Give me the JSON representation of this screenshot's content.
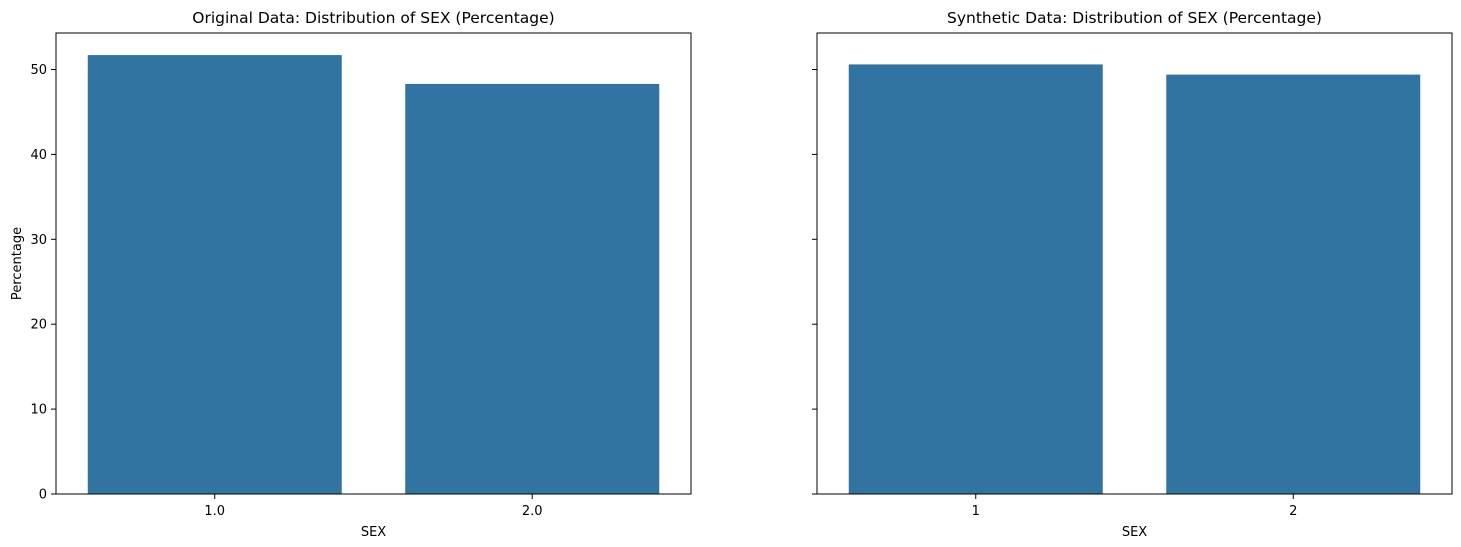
{
  "bar_color": "#3274a1",
  "chart_data": [
    {
      "type": "bar",
      "title": "Original Data: Distribution of SEX (Percentage)",
      "xlabel": "SEX",
      "ylabel": "Percentage",
      "categories": [
        "1.0",
        "2.0"
      ],
      "values": [
        51.7,
        48.3
      ],
      "ylim": [
        0,
        54.3
      ],
      "yticks": [
        0,
        10,
        20,
        30,
        40,
        50
      ],
      "grid": false,
      "legend": "none"
    },
    {
      "type": "bar",
      "title": "Synthetic Data: Distribution of SEX (Percentage)",
      "xlabel": "SEX",
      "ylabel": "",
      "categories": [
        "1",
        "2"
      ],
      "values": [
        50.6,
        49.4
      ],
      "ylim": [
        0,
        54.3
      ],
      "yticks": [
        0,
        10,
        20,
        30,
        40,
        50
      ],
      "ytick_labels_shown": false,
      "grid": false,
      "legend": "none"
    }
  ]
}
